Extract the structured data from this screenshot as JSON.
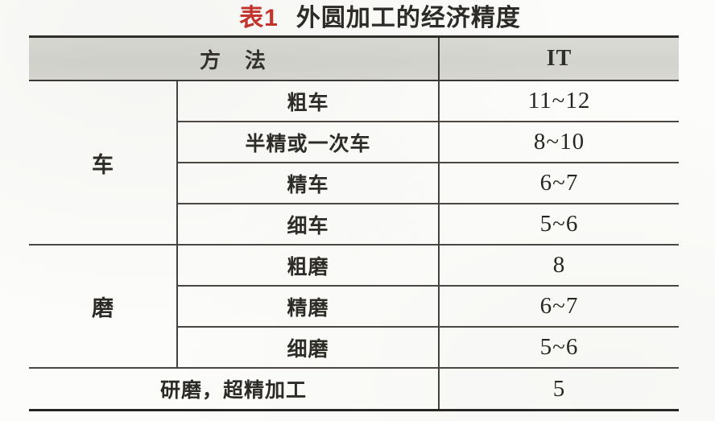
{
  "title": {
    "label": "表1",
    "text": "外圆加工的经济精度"
  },
  "table": {
    "header": {
      "method": "方　法",
      "it": "IT"
    },
    "groups": [
      {
        "name": "车",
        "rows": [
          {
            "method": "粗车",
            "it": "11~12"
          },
          {
            "method": "半精或一次车",
            "it": "8~10"
          },
          {
            "method": "精车",
            "it": "6~7"
          },
          {
            "method": "细车",
            "it": "5~6"
          }
        ]
      },
      {
        "name": "磨",
        "rows": [
          {
            "method": "粗磨",
            "it": "8"
          },
          {
            "method": "精磨",
            "it": "6~7"
          },
          {
            "method": "细磨",
            "it": "5~6"
          }
        ]
      }
    ],
    "footer_row": {
      "method": "研磨，超精加工",
      "it": "5"
    }
  },
  "colors": {
    "title_label_red": "#c5312a",
    "header_background": "#d6d5d0",
    "rule_line": "#4a4641",
    "heavy_rule": "#2d2b27",
    "text": "#2a2824",
    "page_background": "#fcfcfa"
  }
}
